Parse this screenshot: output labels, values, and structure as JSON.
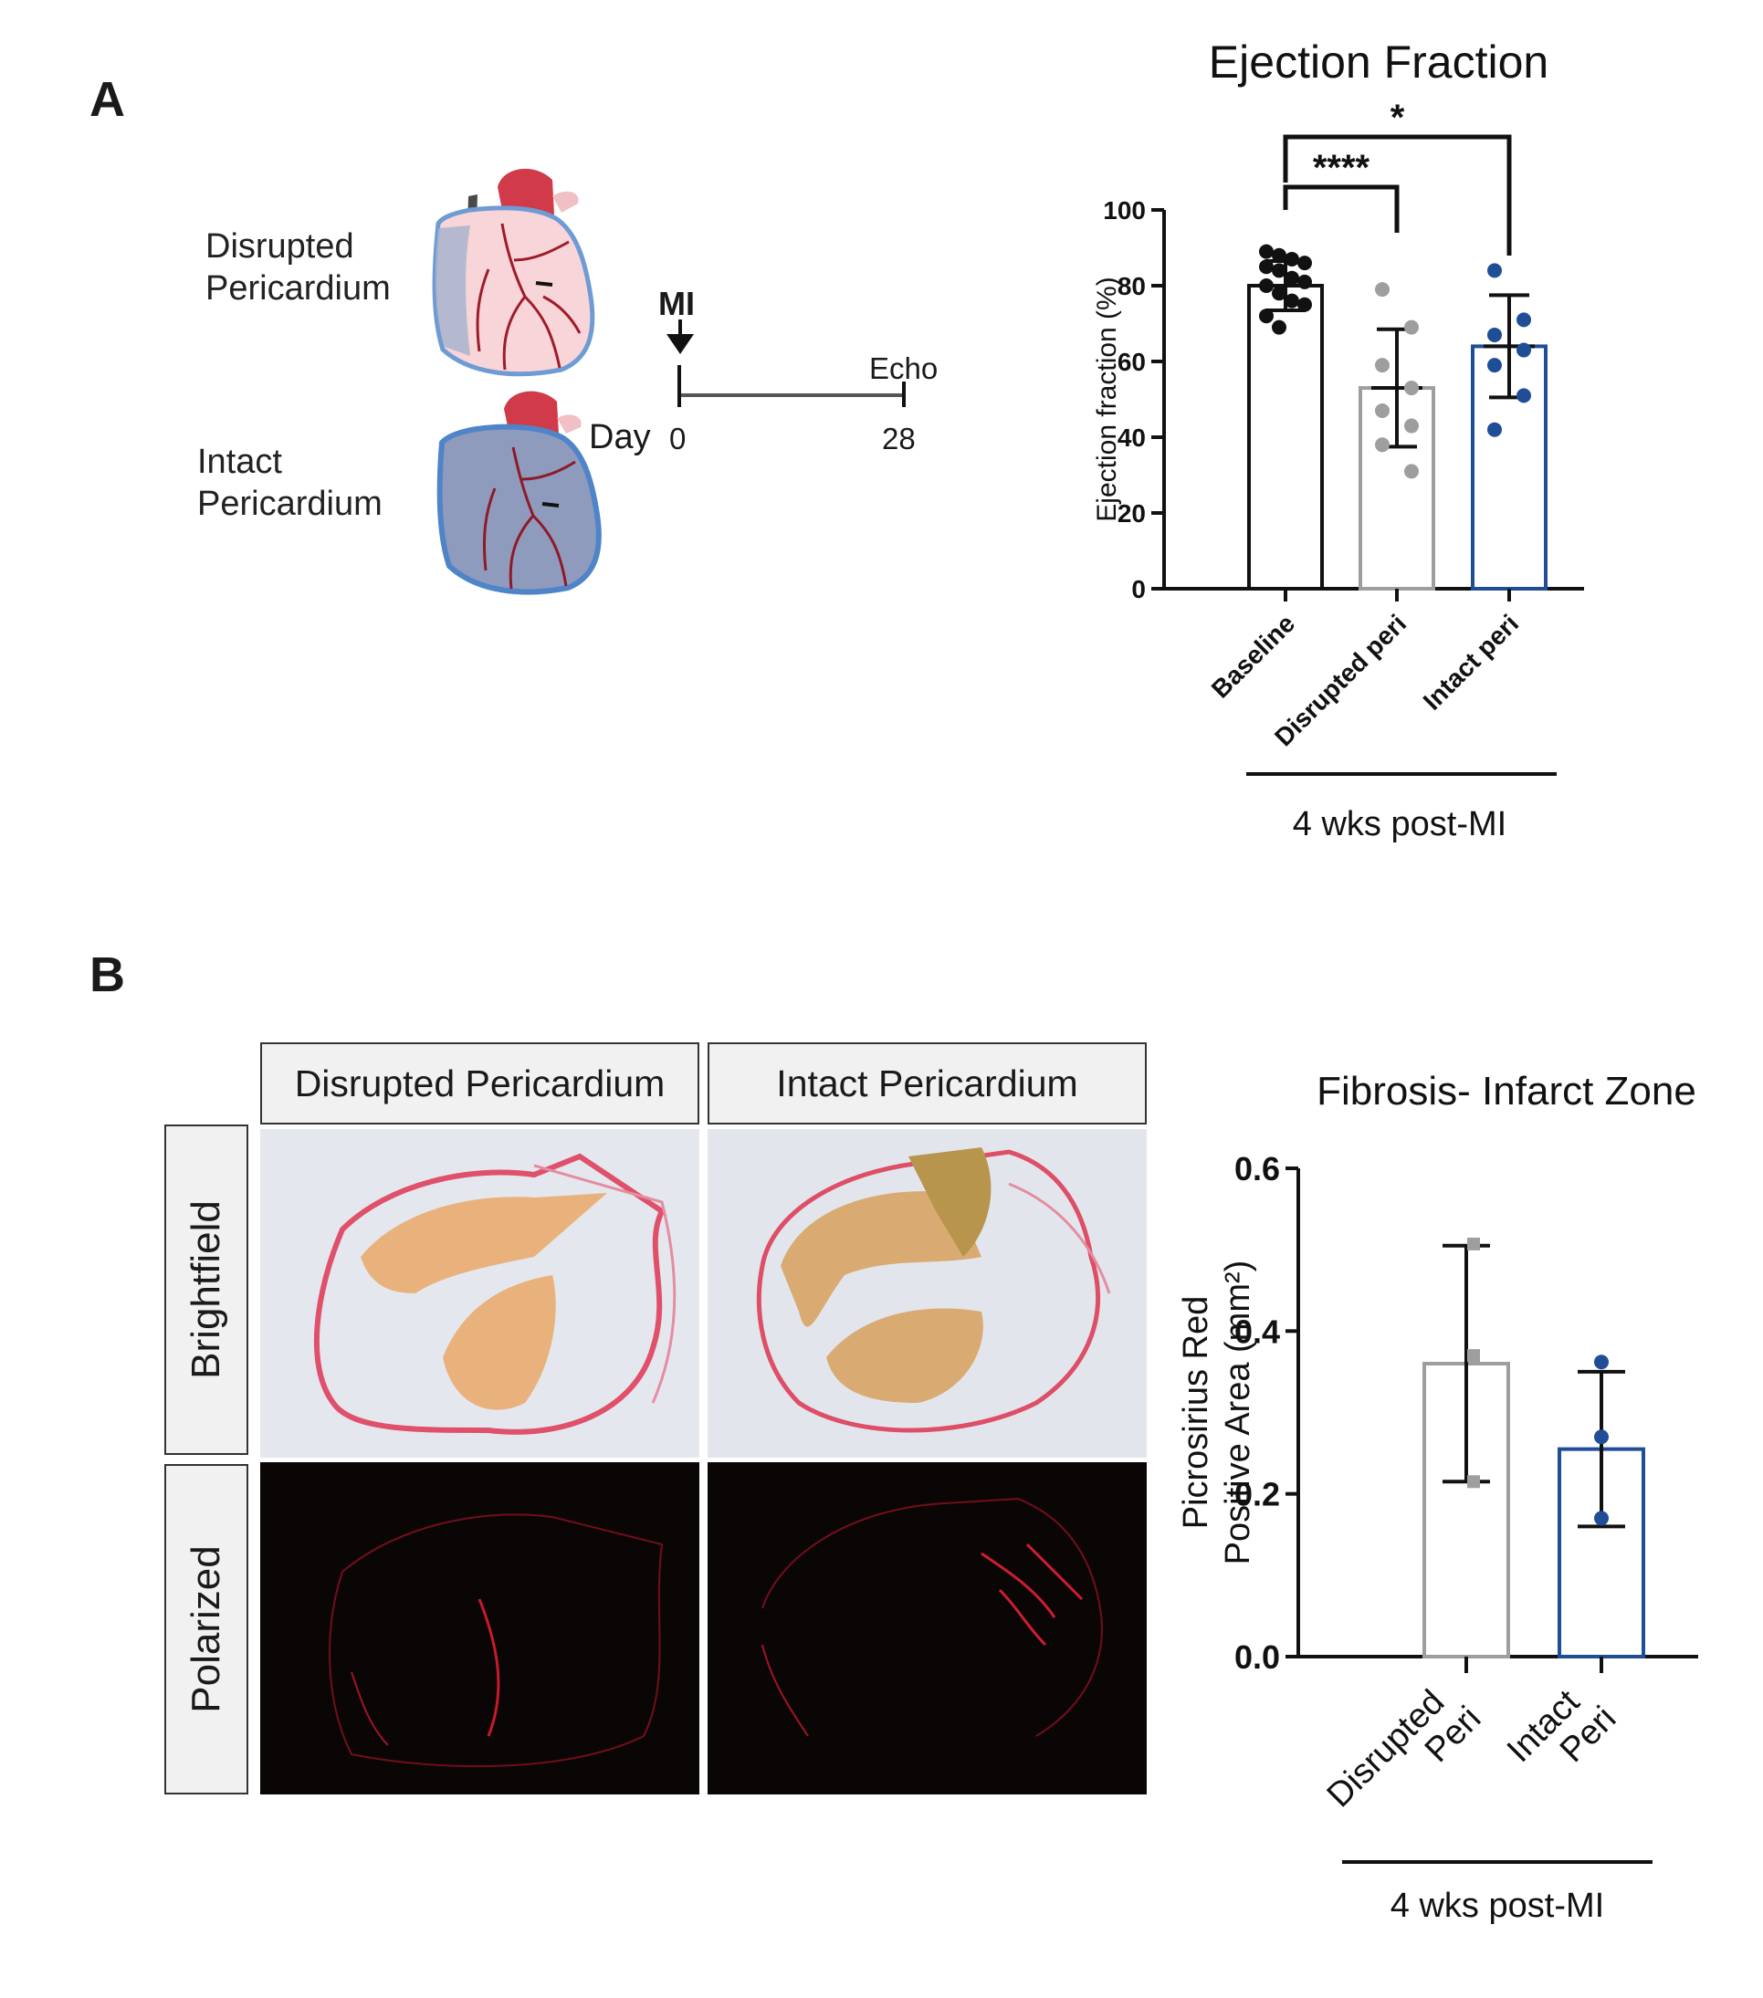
{
  "panel_a": {
    "letter": "A",
    "schematic": {
      "disrupted_label": [
        "Disrupted",
        "Pericardium"
      ],
      "intact_label": [
        "Intact",
        "Pericardium"
      ],
      "timeline": {
        "event": "MI",
        "endpoint": "Echo",
        "day_label": "Day",
        "start_day": "0",
        "end_day": "28"
      }
    }
  },
  "panel_b": {
    "letter": "B",
    "column_headers": [
      "Disrupted Pericardium",
      "Intact Pericardium"
    ],
    "row_headers": [
      "Brightfield",
      "Polarized"
    ]
  },
  "chart_data": [
    {
      "type": "bar",
      "title": "Ejection Fraction",
      "ylabel": "Ejection fraction (%)",
      "subtitle": "4 wks post-MI",
      "ylim": [
        0,
        100
      ],
      "yticks": [
        0,
        20,
        40,
        60,
        80,
        100
      ],
      "categories": [
        "Baseline",
        "Disrupted peri",
        "Intact peri"
      ],
      "colors": [
        "#111111",
        "#9e9e9e",
        "#1f4e96"
      ],
      "means": [
        80,
        53,
        64
      ],
      "sd": [
        6.5,
        15.5,
        13.5
      ],
      "points": [
        [
          89,
          88,
          87,
          86,
          85,
          84,
          82,
          81,
          80,
          78,
          76,
          75,
          72,
          69
        ],
        [
          79,
          69,
          59,
          53,
          47,
          43,
          38,
          31
        ],
        [
          84,
          71,
          67,
          63,
          59,
          51,
          42
        ]
      ],
      "significance": [
        {
          "from": 0,
          "to": 1,
          "label": "****"
        },
        {
          "from": 0,
          "to": 2,
          "label": "*"
        }
      ]
    },
    {
      "type": "bar",
      "title": "Fibrosis- Infarct Zone",
      "ylabel_lines": [
        "Picrosirius Red",
        "Positive Area (mm²)"
      ],
      "subtitle": "4 wks post-MI",
      "ylim": [
        0,
        0.6
      ],
      "yticks": [
        "0.0",
        "0.2",
        "0.4",
        "0.6"
      ],
      "categories": [
        [
          "Disrupted",
          "Peri"
        ],
        [
          "Intact",
          "Peri"
        ]
      ],
      "colors": [
        "#9e9e9e",
        "#1f4e96"
      ],
      "marker_shapes": [
        "square",
        "circle"
      ],
      "means": [
        0.36,
        0.255
      ],
      "sd": [
        0.145,
        0.095
      ],
      "points": [
        [
          0.507,
          0.37,
          0.215
        ],
        [
          0.362,
          0.27,
          0.17
        ]
      ]
    }
  ]
}
